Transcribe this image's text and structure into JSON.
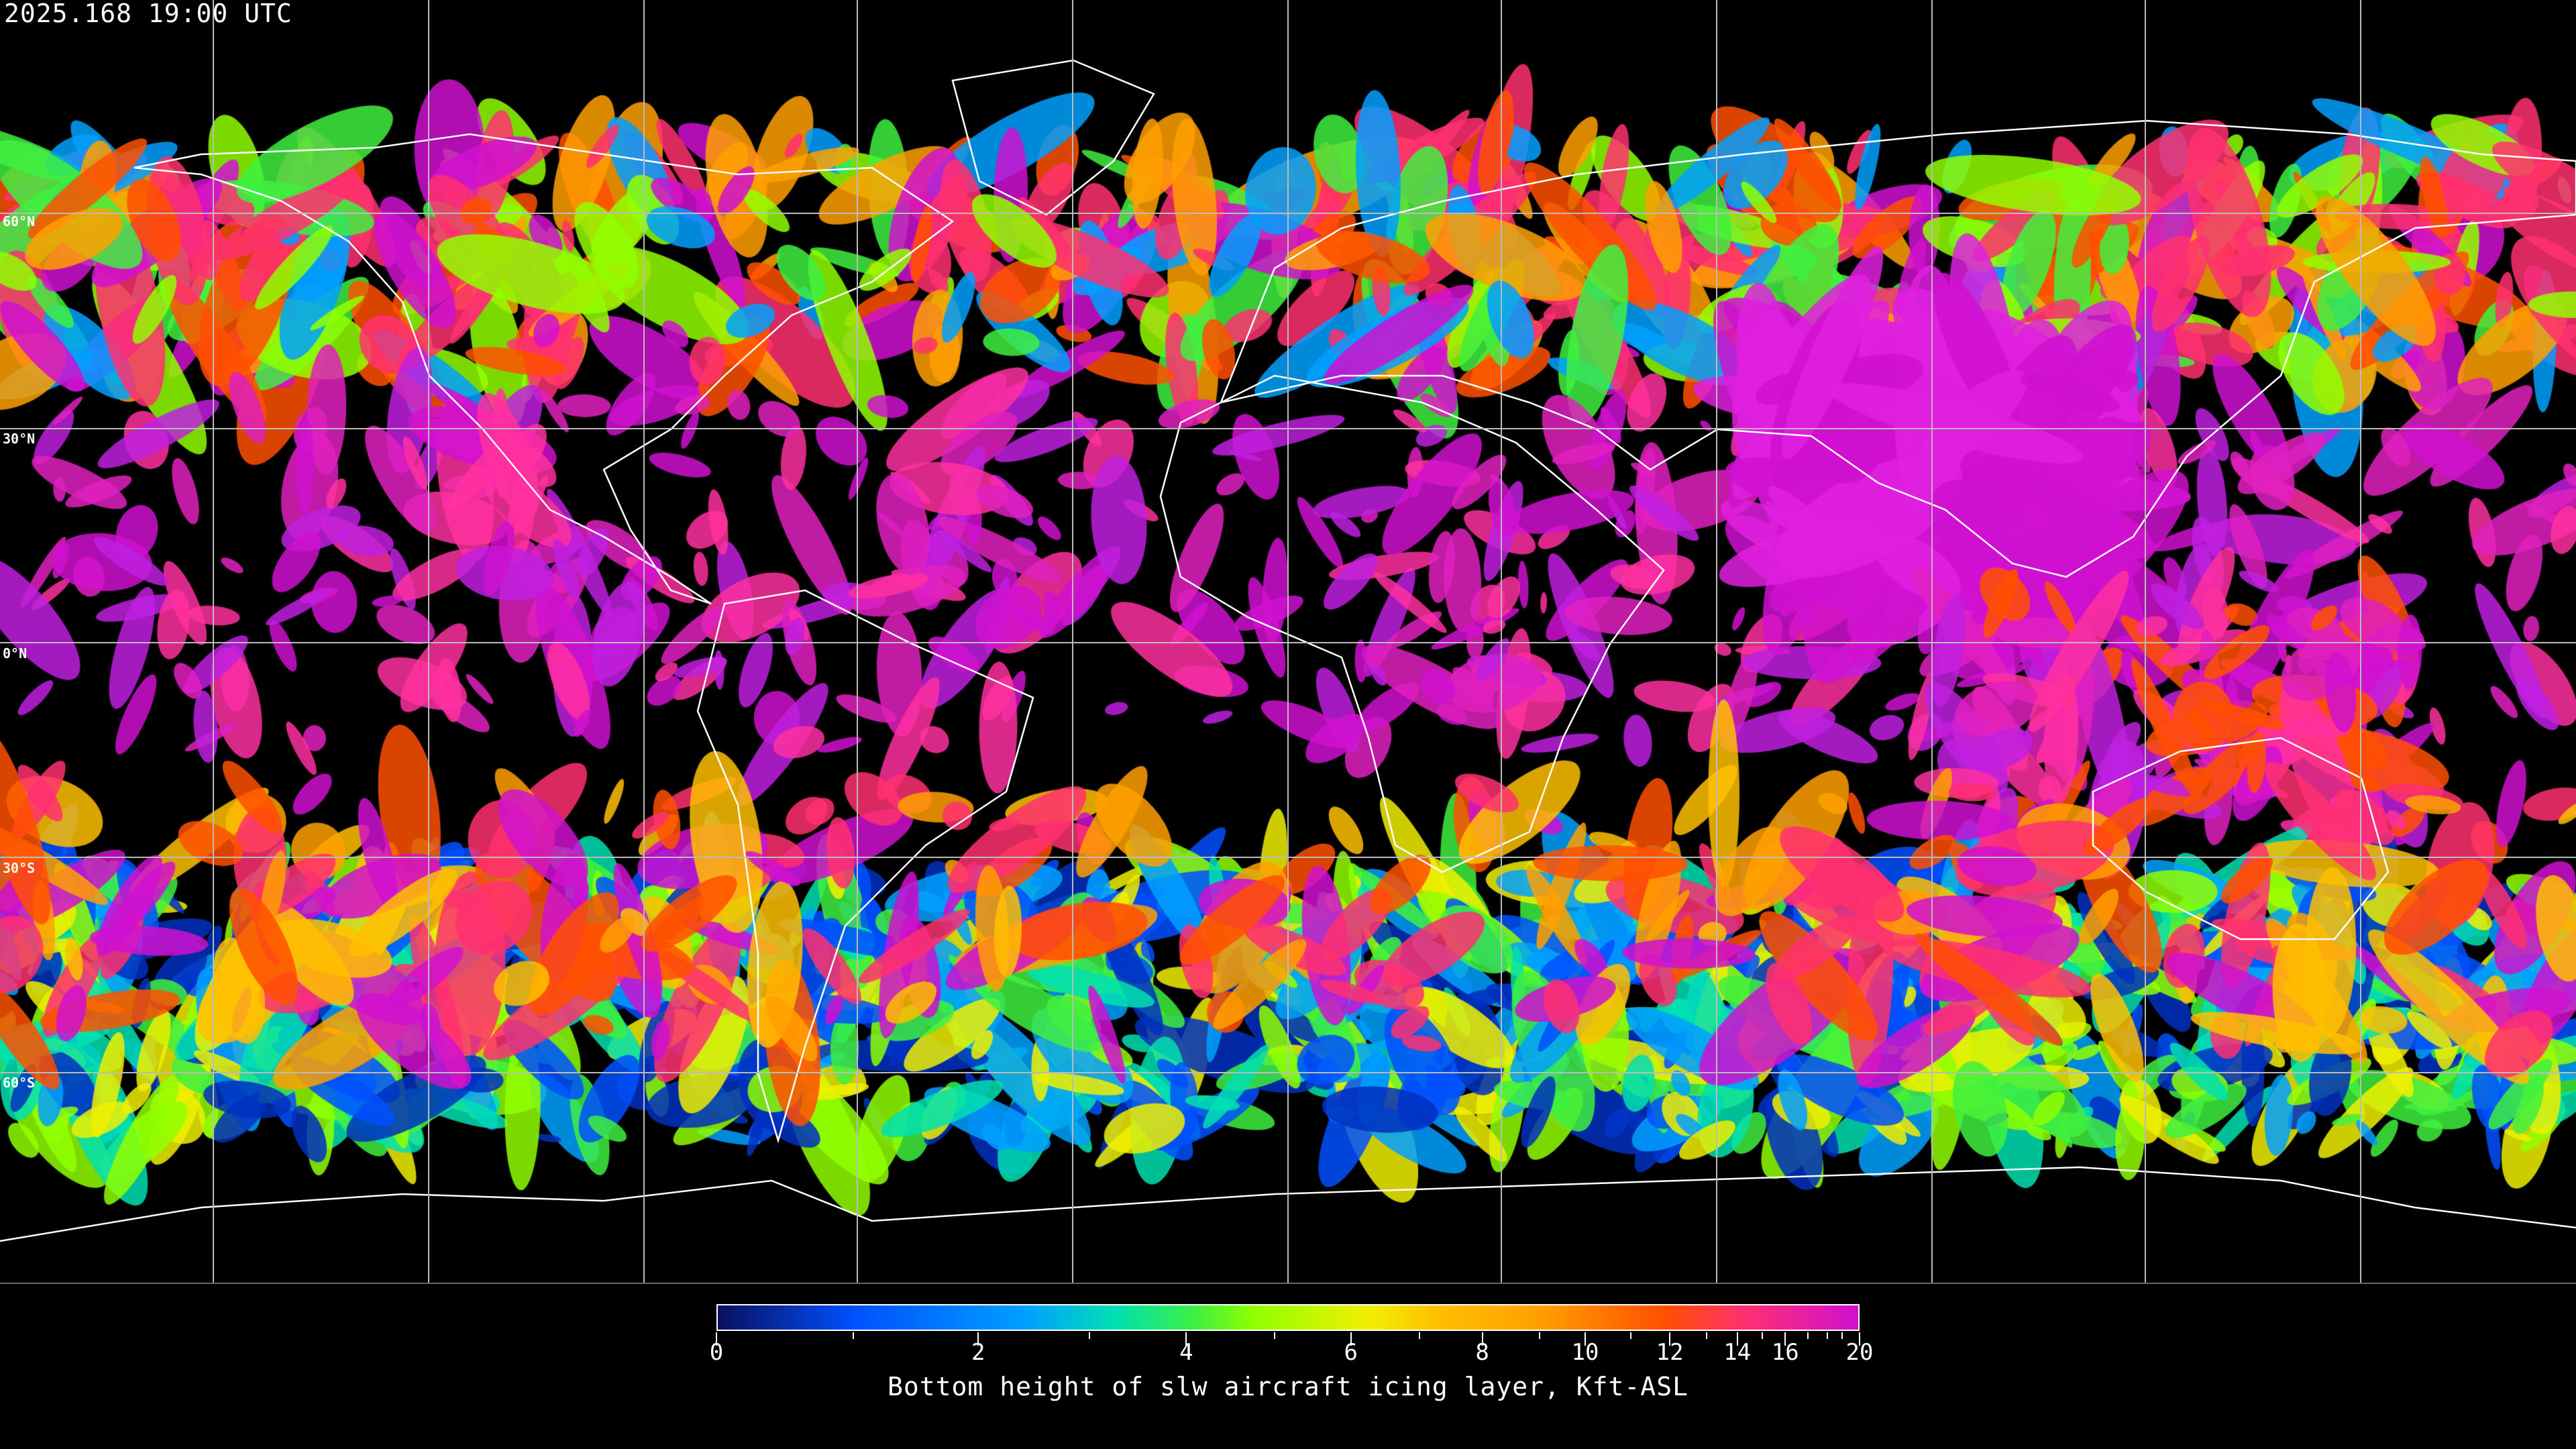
{
  "title": "2025.168 19:00 UTC",
  "map": {
    "projection": "equirectangular",
    "latitude_labels": [
      "60°N",
      "30°N",
      "0°N",
      "30°S",
      "60°S"
    ],
    "grid": true,
    "coastlines_color": "#ffffff"
  },
  "colorbar": {
    "title": "Bottom height of slw aircraft icing layer, Kft-ASL",
    "tick_labels": [
      "0",
      "2",
      "4",
      "6",
      "8",
      "10",
      "12",
      "14",
      "16",
      "20"
    ],
    "range": [
      0,
      20
    ],
    "colors": [
      "#0a1060",
      "#0050ff",
      "#00a0ff",
      "#00e0b0",
      "#40f040",
      "#90ff00",
      "#f0f000",
      "#ffc000",
      "#ffa000",
      "#ff5000",
      "#ff3070",
      "#d010d0"
    ]
  }
}
